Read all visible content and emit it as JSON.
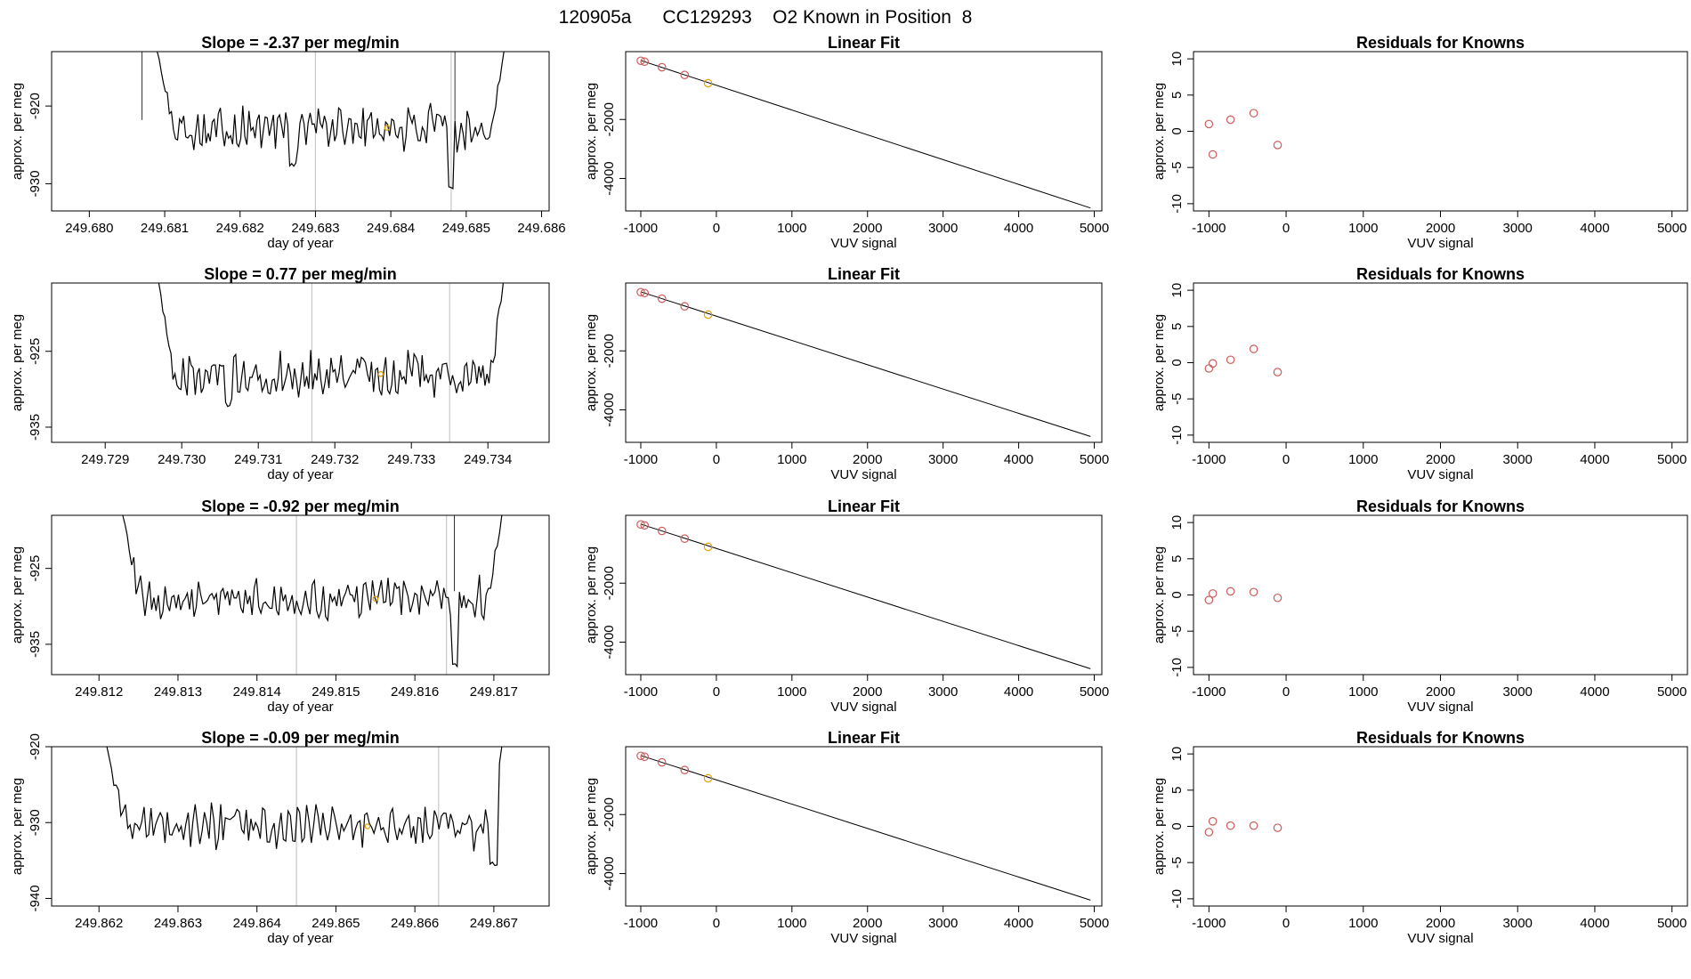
{
  "page": {
    "title": "120905a      CC129293    O2 Known in Position  8"
  },
  "colors": {
    "line": "#000000",
    "known_point": "#cd5c5c",
    "current_point": "#e69f00",
    "vline": "#c8c8c8"
  },
  "rows": [
    {
      "slope": {
        "title": "Slope =  -2.37  per meg/min",
        "xlabel": "day of year",
        "ylabel": "approx. per meg",
        "xlim": [
          249.6795,
          249.6861
        ],
        "ylim": [
          -933.5,
          -913.0
        ],
        "xticks": [
          "249.680",
          "249.681",
          "249.682",
          "249.683",
          "249.684",
          "249.685",
          "249.686"
        ],
        "yticks": [
          "-920",
          "-930"
        ],
        "vlines": [
          249.683,
          249.6848
        ],
        "spikes": [
          249.6807,
          249.68485
        ],
        "trace": {
          "start": 249.6809,
          "end": 249.6855,
          "first": -913.0,
          "last": -913.0,
          "base": -922.8,
          "amp": 2.2,
          "dips": [
            [
              249.6827,
              -927.5
            ],
            [
              249.6848,
              -930.5
            ]
          ]
        },
        "marker": [
          249.68395,
          -922.8
        ]
      },
      "fit": {
        "title": "Linear Fit",
        "xlabel": "VUV signal",
        "ylabel": "approx. per meg",
        "xlim": [
          -1200,
          5100
        ],
        "ylim": [
          -5100,
          300
        ],
        "xticks": [
          "-1000",
          "0",
          "1000",
          "2000",
          "3000",
          "4000",
          "5000"
        ],
        "yticks": [
          "-2000",
          "-4000"
        ],
        "line": [
          [
            -1000,
            0
          ],
          [
            4950,
            -5000
          ]
        ],
        "points": [
          [
            -1000,
            -10
          ],
          [
            -950,
            -40
          ],
          [
            -720,
            -230
          ],
          [
            -420,
            -490
          ],
          [
            -110,
            -770
          ]
        ]
      },
      "resid": {
        "title": "Residuals for Knowns",
        "xlabel": "VUV signal",
        "ylabel": "approx. per meg",
        "xlim": [
          -1200,
          5200
        ],
        "ylim": [
          -11,
          11
        ],
        "xticks": [
          "-1000",
          "0",
          "1000",
          "2000",
          "3000",
          "4000",
          "5000"
        ],
        "yticks": [
          "10",
          "5",
          "0",
          "-5",
          "-10"
        ],
        "points": [
          [
            -1000,
            1.0
          ],
          [
            -950,
            -3.2
          ],
          [
            -720,
            1.6
          ],
          [
            -420,
            2.5
          ],
          [
            -110,
            -1.9
          ]
        ]
      }
    },
    {
      "slope": {
        "title": "Slope =  0.77  per meg/min",
        "xlabel": "day of year",
        "ylabel": "approx. per meg",
        "xlim": [
          249.7283,
          249.7348
        ],
        "ylim": [
          -937.0,
          -916.0
        ],
        "xticks": [
          "249.729",
          "249.730",
          "249.731",
          "249.732",
          "249.733",
          "249.734"
        ],
        "yticks": [
          "-925",
          "-935"
        ],
        "vlines": [
          249.7317,
          249.7335
        ],
        "spikes": [],
        "trace": {
          "start": 249.7297,
          "end": 249.7342,
          "first": -916.0,
          "last": -916.0,
          "base": -928.0,
          "amp": 2.2,
          "dips": [
            [
              249.7306,
              -932.0
            ]
          ]
        },
        "marker": [
          249.7326,
          -928.0
        ]
      },
      "fit": {
        "title": "Linear Fit",
        "xlabel": "VUV signal",
        "ylabel": "approx. per meg",
        "xlim": [
          -1200,
          5100
        ],
        "ylim": [
          -5100,
          300
        ],
        "xticks": [
          "-1000",
          "0",
          "1000",
          "2000",
          "3000",
          "4000",
          "5000"
        ],
        "yticks": [
          "-2000",
          "-4000"
        ],
        "line": [
          [
            -1000,
            0
          ],
          [
            4950,
            -4900
          ]
        ],
        "points": [
          [
            -1000,
            -10
          ],
          [
            -950,
            -40
          ],
          [
            -720,
            -230
          ],
          [
            -420,
            -490
          ],
          [
            -110,
            -770
          ]
        ]
      },
      "resid": {
        "title": "Residuals for Knowns",
        "xlabel": "VUV signal",
        "ylabel": "approx. per meg",
        "xlim": [
          -1200,
          5200
        ],
        "ylim": [
          -11,
          11
        ],
        "xticks": [
          "-1000",
          "0",
          "1000",
          "2000",
          "3000",
          "4000",
          "5000"
        ],
        "yticks": [
          "10",
          "5",
          "0",
          "-5",
          "-10"
        ],
        "points": [
          [
            -1000,
            -0.8
          ],
          [
            -950,
            -0.1
          ],
          [
            -720,
            0.4
          ],
          [
            -420,
            1.9
          ],
          [
            -110,
            -1.3
          ]
        ]
      }
    },
    {
      "slope": {
        "title": "Slope =  -0.92  per meg/min",
        "xlabel": "day of year",
        "ylabel": "approx. per meg",
        "xlim": [
          249.8114,
          249.8177
        ],
        "ylim": [
          -939.0,
          -918.0
        ],
        "xticks": [
          "249.812",
          "249.813",
          "249.814",
          "249.815",
          "249.816",
          "249.817"
        ],
        "yticks": [
          "-925",
          "-935"
        ],
        "vlines": [
          249.8145,
          249.8164
        ],
        "spikes": [
          249.8165
        ],
        "trace": {
          "start": 249.8123,
          "end": 249.8171,
          "first": -918.0,
          "last": -918.0,
          "base": -929.0,
          "amp": 2.2,
          "dips": [
            [
              249.8165,
              -937.8
            ]
          ]
        },
        "marker": [
          249.8155,
          -929.0
        ]
      },
      "fit": {
        "title": "Linear Fit",
        "xlabel": "VUV signal",
        "ylabel": "approx. per meg",
        "xlim": [
          -1200,
          5100
        ],
        "ylim": [
          -5100,
          300
        ],
        "xticks": [
          "-1000",
          "0",
          "1000",
          "2000",
          "3000",
          "4000",
          "5000"
        ],
        "yticks": [
          "-2000",
          "-4000"
        ],
        "line": [
          [
            -1000,
            0
          ],
          [
            4950,
            -4900
          ]
        ],
        "points": [
          [
            -1000,
            -10
          ],
          [
            -950,
            -40
          ],
          [
            -720,
            -230
          ],
          [
            -420,
            -490
          ],
          [
            -110,
            -770
          ]
        ]
      },
      "resid": {
        "title": "Residuals for Knowns",
        "xlabel": "VUV signal",
        "ylabel": "approx. per meg",
        "xlim": [
          -1200,
          5200
        ],
        "ylim": [
          -11,
          11
        ],
        "xticks": [
          "-1000",
          "0",
          "1000",
          "2000",
          "3000",
          "4000",
          "5000"
        ],
        "yticks": [
          "10",
          "5",
          "0",
          "-5",
          "-10"
        ],
        "points": [
          [
            -1000,
            -0.7
          ],
          [
            -950,
            0.2
          ],
          [
            -720,
            0.5
          ],
          [
            -420,
            0.4
          ],
          [
            -110,
            -0.4
          ]
        ]
      }
    },
    {
      "slope": {
        "title": "Slope =  -0.09  per meg/min",
        "xlabel": "day of year",
        "ylabel": "approx. per meg",
        "xlim": [
          249.8614,
          249.8677
        ],
        "ylim": [
          -941.0,
          -920.0
        ],
        "xticks": [
          "249.862",
          "249.863",
          "249.864",
          "249.865",
          "249.866",
          "249.867"
        ],
        "yticks": [
          "-920",
          "-930",
          "-940"
        ],
        "vlines": [
          249.8645,
          249.8663
        ],
        "spikes": [],
        "trace": {
          "start": 249.8621,
          "end": 249.8671,
          "first": -920.0,
          "last": -920.0,
          "base": -930.5,
          "amp": 2.2,
          "dips": [
            [
              249.867,
              -935.5
            ]
          ]
        },
        "marker": [
          249.8654,
          -930.5
        ]
      },
      "fit": {
        "title": "Linear Fit",
        "xlabel": "VUV signal",
        "ylabel": "approx. per meg",
        "xlim": [
          -1200,
          5100
        ],
        "ylim": [
          -5100,
          300
        ],
        "xticks": [
          "-1000",
          "0",
          "1000",
          "2000",
          "3000",
          "4000",
          "5000"
        ],
        "yticks": [
          "-2000",
          "-4000"
        ],
        "line": [
          [
            -1000,
            0
          ],
          [
            4950,
            -4900
          ]
        ],
        "points": [
          [
            -1000,
            -10
          ],
          [
            -950,
            -40
          ],
          [
            -720,
            -230
          ],
          [
            -420,
            -490
          ],
          [
            -110,
            -770
          ]
        ]
      },
      "resid": {
        "title": "Residuals for Knowns",
        "xlabel": "VUV signal",
        "ylabel": "approx. per meg",
        "xlim": [
          -1200,
          5200
        ],
        "ylim": [
          -11,
          11
        ],
        "xticks": [
          "-1000",
          "0",
          "1000",
          "2000",
          "3000",
          "4000",
          "5000"
        ],
        "yticks": [
          "10",
          "5",
          "0",
          "-5",
          "-10"
        ],
        "points": [
          [
            -1000,
            -0.8
          ],
          [
            -950,
            0.7
          ],
          [
            -720,
            0.1
          ],
          [
            -420,
            0.1
          ],
          [
            -110,
            -0.2
          ]
        ]
      }
    }
  ],
  "chart_data": [
    {
      "type": "line",
      "title": "Slope =  -2.37  per meg/min",
      "xlabel": "day of year",
      "ylabel": "approx. per meg",
      "xlim": [
        249.6795,
        249.6861
      ],
      "ylim": [
        -933.5,
        -913.0
      ]
    },
    {
      "type": "scatter",
      "title": "Linear Fit",
      "xlabel": "VUV signal",
      "ylabel": "approx. per meg",
      "x": [
        -1000,
        -950,
        -720,
        -420,
        -110
      ],
      "y": [
        -10,
        -40,
        -230,
        -490,
        -770
      ]
    },
    {
      "type": "scatter",
      "title": "Residuals for Knowns",
      "xlabel": "VUV signal",
      "ylabel": "approx. per meg",
      "x": [
        -1000,
        -950,
        -720,
        -420,
        -110
      ],
      "y": [
        1.0,
        -3.2,
        1.6,
        2.5,
        -1.9
      ]
    },
    {
      "type": "line",
      "title": "Slope =  0.77  per meg/min",
      "xlabel": "day of year",
      "ylabel": "approx. per meg",
      "xlim": [
        249.7283,
        249.7348
      ],
      "ylim": [
        -937.0,
        -916.0
      ]
    },
    {
      "type": "scatter",
      "title": "Linear Fit",
      "xlabel": "VUV signal",
      "ylabel": "approx. per meg",
      "x": [
        -1000,
        -950,
        -720,
        -420,
        -110
      ],
      "y": [
        -10,
        -40,
        -230,
        -490,
        -770
      ]
    },
    {
      "type": "scatter",
      "title": "Residuals for Knowns",
      "xlabel": "VUV signal",
      "ylabel": "approx. per meg",
      "x": [
        -1000,
        -950,
        -720,
        -420,
        -110
      ],
      "y": [
        -0.8,
        -0.1,
        0.4,
        1.9,
        -1.3
      ]
    },
    {
      "type": "line",
      "title": "Slope =  -0.92  per meg/min",
      "xlabel": "day of year",
      "ylabel": "approx. per meg",
      "xlim": [
        249.8114,
        249.8177
      ],
      "ylim": [
        -939.0,
        -918.0
      ]
    },
    {
      "type": "scatter",
      "title": "Linear Fit",
      "xlabel": "VUV signal",
      "ylabel": "approx. per meg",
      "x": [
        -1000,
        -950,
        -720,
        -420,
        -110
      ],
      "y": [
        -10,
        -40,
        -230,
        -490,
        -770
      ]
    },
    {
      "type": "scatter",
      "title": "Residuals for Knowns",
      "xlabel": "VUV signal",
      "ylabel": "approx. per meg",
      "x": [
        -1000,
        -950,
        -720,
        -420,
        -110
      ],
      "y": [
        -0.7,
        0.2,
        0.5,
        0.4,
        -0.4
      ]
    },
    {
      "type": "line",
      "title": "Slope =  -0.09  per meg/min",
      "xlabel": "day of year",
      "ylabel": "approx. per meg",
      "xlim": [
        249.8614,
        249.8677
      ],
      "ylim": [
        -941.0,
        -920.0
      ]
    },
    {
      "type": "scatter",
      "title": "Linear Fit",
      "xlabel": "VUV signal",
      "ylabel": "approx. per meg",
      "x": [
        -1000,
        -950,
        -720,
        -420,
        -110
      ],
      "y": [
        -10,
        -40,
        -230,
        -490,
        -770
      ]
    },
    {
      "type": "scatter",
      "title": "Residuals for Knowns",
      "xlabel": "VUV signal",
      "ylabel": "approx. per meg",
      "x": [
        -1000,
        -950,
        -720,
        -420,
        -110
      ],
      "y": [
        -0.8,
        0.7,
        0.1,
        0.1,
        -0.2
      ]
    }
  ]
}
